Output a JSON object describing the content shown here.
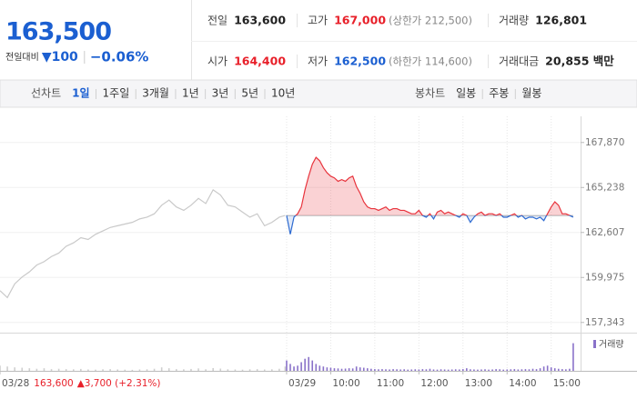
{
  "header": {
    "price": "163,500",
    "change_label": "전일대비",
    "change": "▼100",
    "change_pct": "−0.06%",
    "stats": [
      {
        "label": "전일",
        "value": "163,600",
        "color": "#222222"
      },
      {
        "label": "고가",
        "value": "167,000",
        "color": "#e8202a",
        "note": "(상한가 212,500)"
      },
      {
        "label": "거래량",
        "value": "126,801",
        "color": "#222222"
      },
      {
        "label": "시가",
        "value": "164,400",
        "color": "#e8202a"
      },
      {
        "label": "저가",
        "value": "162,500",
        "color": "#1b5fd1",
        "note": "(하한가 114,600)"
      },
      {
        "label": "거래대금",
        "value": "20,855 백만",
        "color": "#222222"
      }
    ]
  },
  "tabs": {
    "line_label": "선차트",
    "line": [
      "1일",
      "1주일",
      "3개월",
      "1년",
      "3년",
      "5년",
      "10년"
    ],
    "active": 0,
    "candle_label": "봉차트",
    "candle": [
      "일봉",
      "주봉",
      "월봉"
    ]
  },
  "chart_data": {
    "type": "line",
    "xlim": [
      0,
      790
    ],
    "ylim": [
      156800,
      169400
    ],
    "xticks": [
      {
        "value": 0,
        "label": "03/28"
      },
      {
        "value": 390,
        "label": "03/29"
      },
      {
        "value": 450,
        "label": "10:00"
      },
      {
        "value": 510,
        "label": "11:00"
      },
      {
        "value": 570,
        "label": "12:00"
      },
      {
        "value": 630,
        "label": "13:00"
      },
      {
        "value": 690,
        "label": "14:00"
      },
      {
        "value": 750,
        "label": "15:00"
      }
    ],
    "yticks": [
      {
        "value": 157343,
        "label": "157,343"
      },
      {
        "value": 159975,
        "label": "159,975"
      },
      {
        "value": 162607,
        "label": "162,607"
      },
      {
        "value": 165238,
        "label": "165,238"
      },
      {
        "value": 167870,
        "label": "167,870"
      }
    ],
    "grid": true,
    "baseline": 163600,
    "annotations": {
      "prev_close": "163,600",
      "prev_change": "▲3,700 (+2.31%)"
    },
    "series": [
      {
        "color": "#c9c9c9",
        "x": [
          0,
          10,
          20,
          30,
          40,
          50,
          60,
          70,
          80,
          90,
          100,
          110,
          120,
          130,
          140,
          150,
          160,
          170,
          180,
          190,
          200,
          210,
          220,
          230,
          240,
          250,
          260,
          270,
          280,
          290,
          300,
          310,
          320,
          330,
          340,
          350,
          360,
          370,
          380,
          388
        ],
        "values": [
          159200,
          158800,
          159600,
          160000,
          160300,
          160700,
          160900,
          161200,
          161400,
          161800,
          162000,
          162300,
          162200,
          162500,
          162700,
          162900,
          163000,
          163100,
          163200,
          163400,
          163500,
          163700,
          164200,
          164500,
          164100,
          163900,
          164200,
          164600,
          164300,
          165100,
          164800,
          164200,
          164100,
          163800,
          163500,
          163700,
          163000,
          163200,
          163500,
          163600
        ]
      },
      {
        "color": "#e8333c",
        "color_down": "#2e6bd1",
        "x": [
          390,
          395,
          400,
          405,
          410,
          415,
          420,
          425,
          430,
          435,
          440,
          445,
          450,
          455,
          460,
          465,
          470,
          475,
          480,
          485,
          490,
          495,
          500,
          505,
          510,
          515,
          520,
          525,
          530,
          535,
          540,
          545,
          550,
          555,
          560,
          565,
          570,
          575,
          580,
          585,
          590,
          595,
          600,
          605,
          610,
          615,
          620,
          625,
          630,
          635,
          640,
          645,
          650,
          655,
          660,
          665,
          670,
          675,
          680,
          685,
          690,
          695,
          700,
          705,
          710,
          715,
          720,
          725,
          730,
          735,
          740,
          745,
          750,
          755,
          760,
          765,
          770,
          775,
          780
        ],
        "values": [
          163600,
          162500,
          163500,
          163700,
          164100,
          165100,
          165900,
          166600,
          167000,
          166800,
          166400,
          166100,
          165900,
          165800,
          165600,
          165700,
          165600,
          165800,
          165900,
          165300,
          164900,
          164400,
          164100,
          164000,
          164000,
          163900,
          164000,
          164100,
          163900,
          164000,
          164000,
          163900,
          163900,
          163800,
          163700,
          163700,
          163900,
          163600,
          163500,
          163700,
          163400,
          163800,
          163900,
          163700,
          163800,
          163700,
          163600,
          163500,
          163700,
          163600,
          163200,
          163500,
          163700,
          163800,
          163600,
          163700,
          163700,
          163600,
          163700,
          163500,
          163500,
          163600,
          163700,
          163500,
          163600,
          163400,
          163500,
          163500,
          163400,
          163500,
          163300,
          163700,
          164100,
          164400,
          164200,
          163700,
          163700,
          163600,
          163500
        ]
      }
    ],
    "volume": {
      "name": "거래량",
      "color": "#8a72c9",
      "ylim": [
        0,
        20000
      ],
      "series": [
        {
          "color": "#cfcfcf",
          "values": [
            3000,
            2500,
            2000,
            1800,
            1500,
            1200,
            1500,
            1000,
            1200,
            1000,
            900,
            1100,
            800,
            700,
            900,
            1000,
            800,
            700,
            600,
            800,
            900,
            1200,
            2000,
            1500,
            1000,
            900,
            1100,
            1400,
            900,
            1600,
            1300,
            900,
            800,
            700,
            900,
            1000,
            800,
            900,
            1200,
            2500
          ]
        },
        {
          "color": "#8a72c9",
          "values": [
            6000,
            4000,
            2500,
            3000,
            5000,
            7000,
            8000,
            6000,
            4000,
            3000,
            2500,
            2000,
            1800,
            1500,
            1400,
            1200,
            1300,
            1500,
            1400,
            2500,
            2000,
            1800,
            1500,
            1200,
            1000,
            900,
            1000,
            900,
            800,
            1000,
            900,
            800,
            900,
            700,
            800,
            900,
            800,
            1000,
            900,
            1200,
            800,
            700,
            900,
            800,
            700,
            800,
            900,
            800,
            1000,
            1500,
            900,
            800,
            700,
            800,
            900,
            700,
            800,
            1000,
            900,
            700,
            800,
            900,
            1000,
            800,
            900,
            1000,
            900,
            1200,
            1000,
            1500,
            2500,
            3000,
            2000,
            1500,
            1200,
            1000,
            900,
            1200,
            16000
          ]
        }
      ]
    }
  }
}
